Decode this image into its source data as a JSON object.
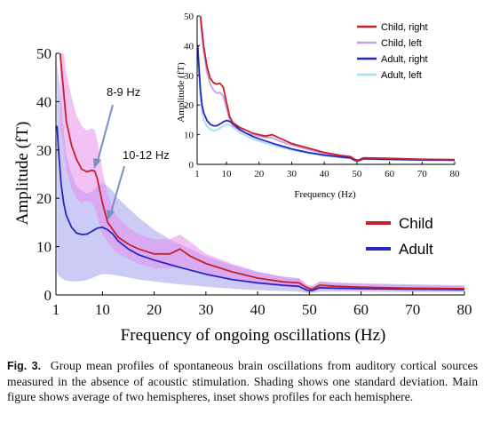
{
  "colors": {
    "child": "#c8202a",
    "adult": "#2626c8",
    "child_left": "#c8a0e8",
    "adult_left": "#a8e0f0",
    "child_band": "#e890ec",
    "adult_band": "#a8a8f0"
  },
  "chart_data": [
    {
      "type": "area",
      "role": "main",
      "xlabel": "Frequency of ongoing oscillations (Hz)",
      "ylabel": "Amplitude (fT)",
      "xlim": [
        1,
        80
      ],
      "ylim": [
        0,
        50
      ],
      "xticks": [
        1,
        10,
        20,
        30,
        40,
        50,
        60,
        70,
        80
      ],
      "yticks": [
        0,
        10,
        20,
        30,
        40,
        50
      ],
      "grid": false,
      "legend_position": "bottom-right",
      "annotations": [
        {
          "text": "8-9 Hz",
          "x": 8.5,
          "y": 26
        },
        {
          "text": "10-12 Hz",
          "x": 11,
          "y": 15
        }
      ],
      "series": [
        {
          "name": "Child",
          "x": [
            1.8,
            2.5,
            3,
            4,
            5,
            6,
            7,
            8,
            8.5,
            9,
            10,
            11,
            12,
            13,
            15,
            17,
            20,
            23,
            25,
            27,
            30,
            35,
            40,
            45,
            48,
            49.5,
            50.5,
            52,
            55,
            60,
            70,
            80
          ],
          "y": [
            50,
            42,
            36,
            31,
            28,
            26,
            25.5,
            25.8,
            25.6,
            24,
            19,
            15,
            13.5,
            12,
            10.5,
            9.5,
            8.5,
            8.5,
            9.5,
            8,
            6.5,
            4.8,
            3.5,
            2.7,
            2.5,
            1.5,
            1.2,
            2,
            1.8,
            1.6,
            1.4,
            1.3
          ],
          "lower": [
            35,
            30,
            26,
            22,
            20,
            19,
            19.5,
            19,
            18,
            16,
            12.5,
            11,
            9.5,
            8.5,
            7.5,
            6.5,
            5.5,
            5.5,
            6,
            5.5,
            4.5,
            3.2,
            2.2,
            1.7,
            1.5,
            0.8,
            0.6,
            1.2,
            1.1,
            1,
            0.9,
            0.8
          ],
          "upper": [
            50,
            50,
            46,
            41,
            37,
            35,
            34,
            34.5,
            34,
            32,
            25.5,
            21,
            18,
            16,
            14,
            12.5,
            11.5,
            11.5,
            12.5,
            11,
            8.5,
            6.5,
            4.8,
            3.7,
            3.5,
            2.2,
            1.8,
            2.8,
            2.5,
            2.3,
            2,
            1.8
          ]
        },
        {
          "name": "Adult",
          "x": [
            1.2,
            1.5,
            2,
            2.5,
            3,
            4,
            5,
            6,
            7,
            8,
            9,
            10,
            11,
            12,
            13,
            15,
            17,
            20,
            23,
            25,
            30,
            35,
            40,
            45,
            48,
            49.5,
            50.5,
            52,
            55,
            60,
            70,
            80
          ],
          "y": [
            35,
            30,
            23,
            19,
            16.5,
            14,
            12.8,
            12.5,
            12.6,
            13.2,
            13.8,
            14,
            13.5,
            12.6,
            11.2,
            9.5,
            8.3,
            7.2,
            6.3,
            5.7,
            4.3,
            3.2,
            2.5,
            2,
            1.8,
            1,
            0.9,
            1.5,
            1.4,
            1.3,
            1.2,
            1.1
          ],
          "lower": [
            5,
            4,
            3.5,
            3.2,
            3,
            2.8,
            2.8,
            2.9,
            3.1,
            3.5,
            4,
            4.3,
            4.3,
            4.2,
            4,
            3.6,
            3.2,
            2.8,
            2.4,
            2.2,
            1.7,
            1.3,
            1,
            0.8,
            0.7,
            0.4,
            0.4,
            0.7,
            0.7,
            0.7,
            0.6,
            0.6
          ],
          "upper": [
            48,
            45,
            40,
            34,
            29,
            25,
            22.5,
            21.5,
            21,
            21.5,
            22.5,
            23.2,
            22.5,
            21.5,
            20,
            18,
            16,
            13.5,
            11.5,
            10.5,
            8,
            6.2,
            4.8,
            3.8,
            3.4,
            2,
            1.8,
            2.8,
            2.6,
            2.4,
            2.2,
            2
          ]
        }
      ]
    },
    {
      "type": "line",
      "role": "inset",
      "xlabel": "Frequency (Hz)",
      "ylabel": "Amplitude (fT)",
      "xlim": [
        1,
        80
      ],
      "ylim": [
        0,
        50
      ],
      "xticks": [
        1,
        10,
        20,
        30,
        40,
        50,
        60,
        70,
        80
      ],
      "yticks": [
        0,
        10,
        20,
        30,
        40,
        50
      ],
      "grid": false,
      "legend_position": "top-right",
      "series": [
        {
          "name": "Child, right",
          "color_key": "child",
          "x": [
            2,
            3,
            4,
            5,
            6,
            7,
            8,
            9,
            10,
            11,
            12,
            14,
            16,
            18,
            20,
            22,
            24,
            26,
            28,
            30,
            35,
            40,
            45,
            48,
            49.5,
            50.5,
            52,
            60,
            70,
            80
          ],
          "y": [
            50,
            40,
            33,
            29,
            27.5,
            27,
            27.3,
            26,
            21,
            16,
            14,
            12.5,
            11.5,
            10.5,
            10,
            9.5,
            10,
            9,
            8,
            7,
            5.5,
            4,
            3,
            2.6,
            1.6,
            1.4,
            2.2,
            2,
            1.7,
            1.6
          ]
        },
        {
          "name": "Child, left",
          "color_key": "child_left",
          "x": [
            2,
            3,
            4,
            5,
            6,
            7,
            8,
            9,
            10,
            11,
            12,
            14,
            16,
            18,
            20,
            22,
            24,
            26,
            28,
            30,
            35,
            40,
            45,
            48,
            49.5,
            50.5,
            52,
            60,
            70,
            80
          ],
          "y": [
            48,
            38,
            31,
            27,
            25,
            24,
            24.2,
            23,
            19,
            15,
            13,
            11.5,
            10.5,
            10,
            9.5,
            9,
            9,
            8,
            7.2,
            6.5,
            5,
            3.6,
            2.8,
            2.4,
            1.5,
            1.3,
            2,
            1.8,
            1.6,
            1.5
          ]
        },
        {
          "name": "Adult, right",
          "color_key": "adult",
          "x": [
            1.2,
            1.5,
            2,
            2.5,
            3,
            4,
            5,
            6,
            7,
            8,
            9,
            10,
            11,
            12,
            14,
            16,
            18,
            20,
            25,
            30,
            35,
            40,
            45,
            48,
            49.5,
            50.5,
            52,
            60,
            70,
            80
          ],
          "y": [
            40,
            34,
            25,
            20,
            17.5,
            14.8,
            13.5,
            13,
            13,
            13.6,
            14.3,
            14.8,
            14.5,
            13.6,
            11.8,
            10.5,
            9.4,
            8.6,
            6.8,
            5.2,
            4,
            3.1,
            2.5,
            2.2,
            1.3,
            1.2,
            1.9,
            1.7,
            1.5,
            1.4
          ]
        },
        {
          "name": "Adult, left",
          "color_key": "adult_left",
          "x": [
            1.2,
            1.5,
            2,
            2.5,
            3,
            4,
            5,
            6,
            7,
            8,
            9,
            10,
            11,
            12,
            14,
            16,
            18,
            20,
            25,
            30,
            35,
            40,
            45,
            48,
            49.5,
            50.5,
            52,
            60,
            70,
            80
          ],
          "y": [
            38,
            31,
            22,
            17.5,
            15,
            12.8,
            11.8,
            11.4,
            11.6,
            12.2,
            12.9,
            13.4,
            13.2,
            12.4,
            10.8,
            9.6,
            8.6,
            7.8,
            6.2,
            4.8,
            3.7,
            2.9,
            2.3,
            2,
            1.2,
            1.1,
            1.7,
            1.5,
            1.4,
            1.3
          ]
        }
      ]
    }
  ],
  "caption": {
    "label": "Fig. 3.",
    "text": "Group mean profiles of spontaneous brain oscillations from auditory cortical sources measured in the absence of acoustic stimulation. Shading shows one standard deviation. Main figure shows average of two hemispheres, inset shows profiles for each hemisphere."
  }
}
